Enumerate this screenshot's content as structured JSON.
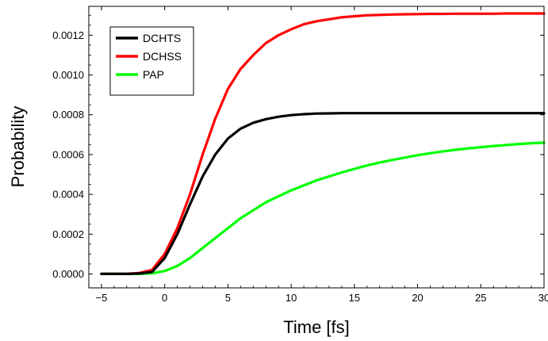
{
  "chart_data": {
    "type": "line",
    "title": "",
    "xlabel": "Time [fs]",
    "ylabel": "Probability",
    "xlim": [
      -6,
      30
    ],
    "ylim": [
      -7e-05,
      0.001345
    ],
    "xticks": [
      -5,
      0,
      5,
      10,
      15,
      20,
      25,
      30
    ],
    "xtick_labels": [
      "−5",
      "0",
      "5",
      "10",
      "15",
      "20",
      "25",
      "30"
    ],
    "yticks": [
      0.0,
      0.0002,
      0.0004,
      0.0006,
      0.0008,
      0.001,
      0.0012
    ],
    "ytick_labels": [
      "0.0000",
      "0.0002",
      "0.0004",
      "0.0006",
      "0.0008",
      "0.0010",
      "0.0012"
    ],
    "grid": false,
    "legend_position": "top-left",
    "x": [
      -5,
      -4,
      -3,
      -2,
      -1,
      0,
      1,
      2,
      3,
      4,
      5,
      6,
      7,
      8,
      9,
      10,
      11,
      12,
      13,
      14,
      15,
      16,
      17,
      18,
      19,
      20,
      21,
      22,
      23,
      24,
      25,
      26,
      27,
      28,
      29,
      30
    ],
    "series": [
      {
        "name": "DCHTS",
        "color": "#000000",
        "values": [
          0.0,
          0.0,
          0.0,
          2e-06,
          1e-05,
          8e-05,
          0.0002,
          0.00035,
          0.00049,
          0.0006,
          0.00068,
          0.00073,
          0.00076,
          0.000778,
          0.00079,
          0.000798,
          0.000803,
          0.000806,
          0.000807,
          0.000808,
          0.000808,
          0.000808,
          0.000808,
          0.000808,
          0.000808,
          0.000808,
          0.000808,
          0.000808,
          0.000808,
          0.000808,
          0.000808,
          0.000808,
          0.000808,
          0.000808,
          0.000808,
          0.000808
        ]
      },
      {
        "name": "DCHSS",
        "color": "#ff0000",
        "values": [
          0.0,
          0.0,
          0.0,
          5e-06,
          2e-05,
          0.0001,
          0.00023,
          0.0004,
          0.0006,
          0.00078,
          0.00093,
          0.00103,
          0.0011,
          0.00116,
          0.0012,
          0.00123,
          0.001255,
          0.00127,
          0.00128,
          0.00129,
          0.001295,
          0.0013,
          0.001302,
          0.001304,
          0.001305,
          0.001306,
          0.001307,
          0.001307,
          0.001308,
          0.001308,
          0.001308,
          0.001308,
          0.001309,
          0.001309,
          0.001309,
          0.001309
        ]
      },
      {
        "name": "PAP",
        "color": "#00ff00",
        "values": [
          0.0,
          0.0,
          0.0,
          0.0,
          3e-06,
          1.5e-05,
          4e-05,
          8e-05,
          0.00013,
          0.00018,
          0.00023,
          0.00028,
          0.00032,
          0.00036,
          0.00039,
          0.00042,
          0.000445,
          0.00047,
          0.00049,
          0.00051,
          0.000528,
          0.000545,
          0.00056,
          0.000573,
          0.000585,
          0.000597,
          0.000607,
          0.000616,
          0.000624,
          0.000631,
          0.000637,
          0.000643,
          0.000648,
          0.000653,
          0.000657,
          0.00066
        ]
      }
    ]
  }
}
